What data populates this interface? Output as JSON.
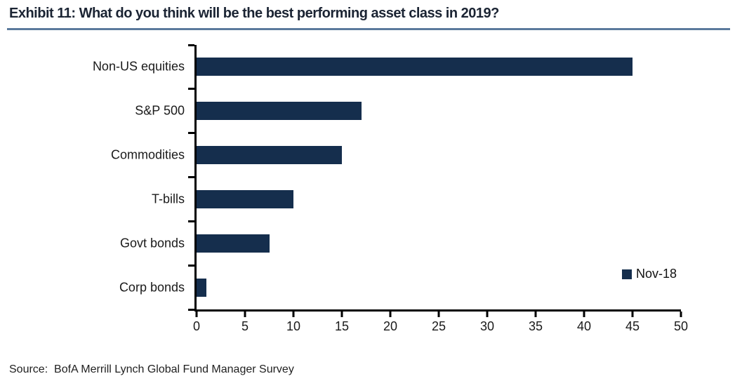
{
  "title": "Exhibit 11: What do you think will be the best performing asset class in 2019?",
  "source": "Source:  BofA Merrill Lynch Global Fund Manager Survey",
  "legend": {
    "label": "Nov-18"
  },
  "colors": {
    "bar": "#152e4d",
    "title_text": "#1b2433",
    "title_rule": "#5b7a9d",
    "axis": "#000000",
    "label_text": "#1a1a1a"
  },
  "chart_data": {
    "type": "bar",
    "orientation": "horizontal",
    "title": "Exhibit 11: What do you think will be the best performing asset class in 2019?",
    "categories": [
      "Non-US equities",
      "S&P 500",
      "Commodities",
      "T-bills",
      "Govt bonds",
      "Corp bonds"
    ],
    "series": [
      {
        "name": "Nov-18",
        "values": [
          45,
          17,
          15,
          10,
          7.5,
          1
        ]
      }
    ],
    "xlabel": "",
    "ylabel": "",
    "xlim": [
      0,
      50
    ],
    "xticks": [
      0,
      5,
      10,
      15,
      20,
      25,
      30,
      35,
      40,
      45,
      50
    ],
    "grid": false,
    "legend_position": "inside-lower-right"
  }
}
